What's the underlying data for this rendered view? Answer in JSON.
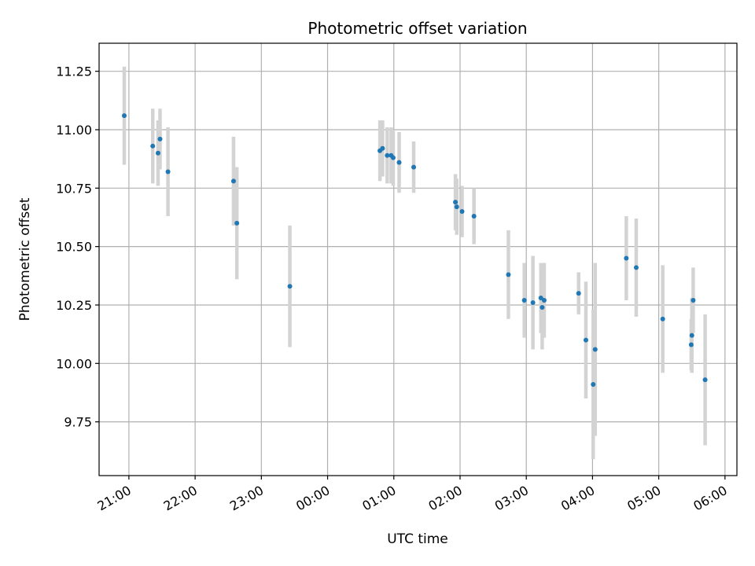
{
  "chart_data": {
    "type": "scatter",
    "title": "Photometric offset variation",
    "xlabel": "UTC time",
    "ylabel": "Photometric offset",
    "grid": true,
    "xlim_hours": [
      20.55,
      30.18
    ],
    "ylim": [
      9.52,
      11.37
    ],
    "x_tick_hours": [
      21,
      22,
      23,
      24,
      25,
      26,
      27,
      28,
      29,
      30
    ],
    "x_tick_labels": [
      "21:00",
      "22:00",
      "23:00",
      "00:00",
      "01:00",
      "02:00",
      "03:00",
      "04:00",
      "05:00",
      "06:00"
    ],
    "y_ticks": [
      9.75,
      10.0,
      10.25,
      10.5,
      10.75,
      11.0,
      11.25
    ],
    "y_tick_labels": [
      "9.75",
      "10.00",
      "10.25",
      "10.50",
      "10.75",
      "11.00",
      "11.25"
    ],
    "marker_color": "#1f77b4",
    "errorbar_color": "#d3d3d3",
    "points": [
      {
        "t": 20.93,
        "y": 11.06,
        "err": 0.21
      },
      {
        "t": 21.36,
        "y": 10.93,
        "err": 0.16
      },
      {
        "t": 21.44,
        "y": 10.9,
        "err": 0.14
      },
      {
        "t": 21.47,
        "y": 10.96,
        "err": 0.13
      },
      {
        "t": 21.59,
        "y": 10.82,
        "err": 0.19
      },
      {
        "t": 22.58,
        "y": 10.78,
        "err": 0.19
      },
      {
        "t": 22.63,
        "y": 10.6,
        "err": 0.24
      },
      {
        "t": 23.43,
        "y": 10.33,
        "err": 0.26
      },
      {
        "t": 24.79,
        "y": 10.91,
        "err": 0.13
      },
      {
        "t": 24.83,
        "y": 10.92,
        "err": 0.12
      },
      {
        "t": 24.9,
        "y": 10.89,
        "err": 0.12
      },
      {
        "t": 24.96,
        "y": 10.89,
        "err": 0.12
      },
      {
        "t": 24.99,
        "y": 10.88,
        "err": 0.12
      },
      {
        "t": 25.08,
        "y": 10.86,
        "err": 0.13
      },
      {
        "t": 25.3,
        "y": 10.84,
        "err": 0.11
      },
      {
        "t": 25.93,
        "y": 10.69,
        "err": 0.12
      },
      {
        "t": 25.95,
        "y": 10.67,
        "err": 0.12
      },
      {
        "t": 26.03,
        "y": 10.65,
        "err": 0.11
      },
      {
        "t": 26.21,
        "y": 10.63,
        "err": 0.12
      },
      {
        "t": 26.73,
        "y": 10.38,
        "err": 0.19
      },
      {
        "t": 26.97,
        "y": 10.27,
        "err": 0.16
      },
      {
        "t": 27.1,
        "y": 10.26,
        "err": 0.2
      },
      {
        "t": 27.22,
        "y": 10.28,
        "err": 0.15
      },
      {
        "t": 27.24,
        "y": 10.24,
        "err": 0.18
      },
      {
        "t": 27.27,
        "y": 10.27,
        "err": 0.16
      },
      {
        "t": 27.79,
        "y": 10.3,
        "err": 0.09
      },
      {
        "t": 27.9,
        "y": 10.1,
        "err": 0.25
      },
      {
        "t": 28.01,
        "y": 9.91,
        "err": 0.32
      },
      {
        "t": 28.04,
        "y": 10.06,
        "err": 0.37
      },
      {
        "t": 28.51,
        "y": 10.45,
        "err": 0.18
      },
      {
        "t": 28.66,
        "y": 10.41,
        "err": 0.21
      },
      {
        "t": 29.06,
        "y": 10.19,
        "err": 0.23
      },
      {
        "t": 29.49,
        "y": 10.08,
        "err": 0.11
      },
      {
        "t": 29.5,
        "y": 10.12,
        "err": 0.16
      },
      {
        "t": 29.52,
        "y": 10.27,
        "err": 0.14
      },
      {
        "t": 29.7,
        "y": 9.93,
        "err": 0.28
      }
    ]
  }
}
